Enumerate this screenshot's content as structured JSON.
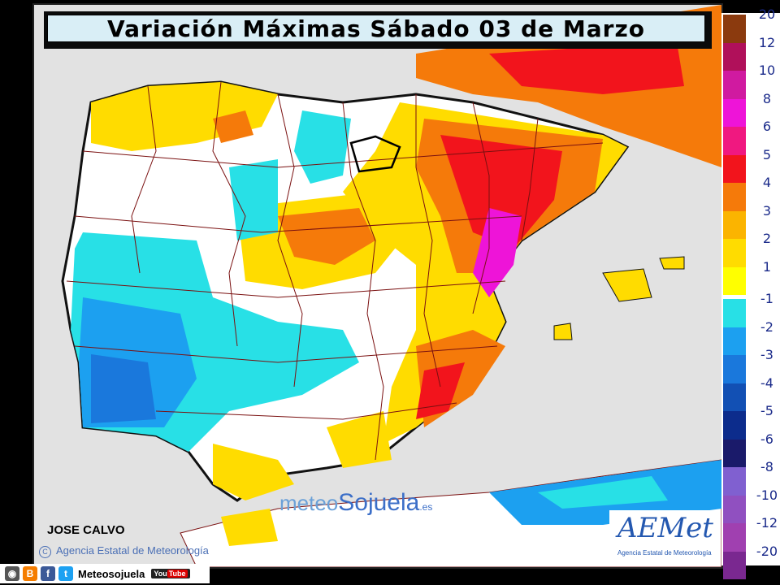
{
  "title": "Variación Máximas Sábado 03 de Marzo",
  "author": "JOSE CALVO",
  "agency_text": "Agencia Estatal de Meteorología",
  "agency_symbol": "C",
  "watermark": {
    "part1": "meteo",
    "part2": "Sojuela",
    "part3": ".es"
  },
  "aemet": {
    "logo": "AEMet",
    "subtitle": "Agencia Estatal de Meteorología"
  },
  "footer": {
    "site_label": "Meteosojuela",
    "youtube_label": "You",
    "youtube_label2": "Tube",
    "icons": [
      "instagram-icon",
      "blogger-icon",
      "facebook-icon",
      "twitter-icon"
    ]
  },
  "legend": {
    "warm": [
      {
        "label": "20",
        "color": "#8b3a0e"
      },
      {
        "label": "12",
        "color": "#b0105a"
      },
      {
        "label": "10",
        "color": "#d01aa0"
      },
      {
        "label": "8",
        "color": "#ee14d8"
      },
      {
        "label": "6",
        "color": "#f01880"
      },
      {
        "label": "5",
        "color": "#f2141c"
      },
      {
        "label": "4",
        "color": "#f57a0a"
      },
      {
        "label": "3",
        "color": "#fbb400"
      },
      {
        "label": "2",
        "color": "#ffdc00"
      },
      {
        "label": "1",
        "color": "#ffff00"
      }
    ],
    "cold": [
      {
        "label": "-1",
        "color": "#28e0e6"
      },
      {
        "label": "-2",
        "color": "#1ca0f0"
      },
      {
        "label": "-3",
        "color": "#1a78dc"
      },
      {
        "label": "-4",
        "color": "#1250b4"
      },
      {
        "label": "-5",
        "color": "#0c2c8c"
      },
      {
        "label": "-6",
        "color": "#1a1a6a"
      },
      {
        "label": "-8",
        "color": "#8060d0"
      },
      {
        "label": "-10",
        "color": "#9050c0"
      },
      {
        "label": "-12",
        "color": "#a040b0"
      },
      {
        "label": "-20",
        "color": "#7a2890"
      }
    ]
  }
}
